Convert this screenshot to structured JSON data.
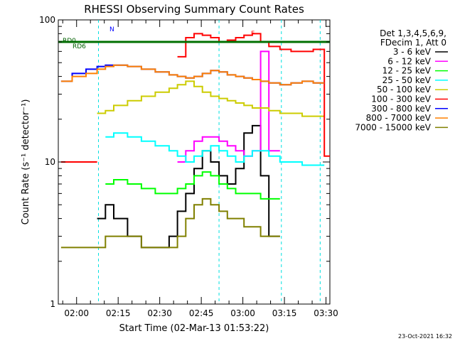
{
  "chart_data": {
    "type": "line",
    "title": "RHESSI Observing Summary Count Rates",
    "xlabel": "Start Time (02-Mar-13 01:53:22)",
    "ylabel": "Count Rate (s⁻¹ detector⁻¹)",
    "yscale": "log",
    "ylim": [
      1,
      100
    ],
    "y_tick_labels": [
      {
        "value": 1,
        "label": "1"
      },
      {
        "value": 10,
        "label": "10"
      },
      {
        "value": 100,
        "label": "100"
      }
    ],
    "x_tick_labels": [
      {
        "t": 6.6,
        "label": "02:00"
      },
      {
        "t": 21.6,
        "label": "02:15"
      },
      {
        "t": 36.6,
        "label": "02:30"
      },
      {
        "t": 51.6,
        "label": "02:45"
      },
      {
        "t": 66.6,
        "label": "03:00"
      },
      {
        "t": 81.6,
        "label": "03:15"
      },
      {
        "t": 96.6,
        "label": "03:30"
      }
    ],
    "xlim": [
      0,
      98
    ],
    "legend_header": [
      "Det 1,3,4,5,6,9,",
      "FDecim 1, Att 0"
    ],
    "legend_placement": "right",
    "footer_date": "23-Oct-2021 16:32",
    "annotations": {
      "rd0": "RD0",
      "rd6": "RD6",
      "n_marker": "N",
      "f_marker": "F"
    },
    "series": [
      {
        "name": "3 - 6 keV",
        "color": "#000000",
        "x": [
          0,
          5,
          10,
          14,
          17,
          20,
          25,
          30,
          35,
          40,
          43,
          46,
          49,
          52,
          55,
          58,
          61,
          64,
          67,
          70,
          73,
          76,
          80,
          84,
          88,
          92,
          96
        ],
        "y": [
          null,
          null,
          null,
          4,
          5,
          4,
          3,
          2.5,
          2.5,
          3,
          4.5,
          6,
          9,
          12,
          10,
          8,
          7,
          9,
          16,
          18,
          8,
          3,
          null,
          null,
          null,
          null,
          null
        ]
      },
      {
        "name": "6 - 12 keV",
        "color": "#ff00ff",
        "x": [
          1,
          5,
          10,
          14,
          17,
          20,
          25,
          30,
          35,
          40,
          43,
          46,
          49,
          52,
          55,
          58,
          61,
          64,
          67,
          70,
          73,
          76,
          80,
          84,
          88,
          92,
          96
        ],
        "y": [
          null,
          null,
          null,
          null,
          null,
          null,
          null,
          null,
          null,
          null,
          10,
          12,
          14,
          15,
          15,
          14,
          13,
          12,
          11,
          12,
          60,
          12,
          null,
          null,
          null,
          null,
          null
        ]
      },
      {
        "name": "12 - 25 keV",
        "color": "#00ff00",
        "x": [
          1,
          5,
          10,
          14,
          17,
          20,
          25,
          30,
          35,
          40,
          43,
          46,
          49,
          52,
          55,
          58,
          61,
          64,
          67,
          70,
          73,
          76,
          80,
          84,
          88,
          92,
          96
        ],
        "y": [
          null,
          null,
          null,
          null,
          7,
          7.5,
          7,
          6.5,
          6,
          6,
          6.5,
          7,
          8,
          8.5,
          8,
          7,
          6.5,
          6,
          6,
          6,
          5.5,
          5.5,
          null,
          null,
          null,
          null,
          null
        ]
      },
      {
        "name": "25 - 50 keV",
        "color": "#00ffff",
        "x": [
          1,
          5,
          10,
          14,
          17,
          20,
          25,
          30,
          35,
          40,
          43,
          46,
          49,
          52,
          55,
          58,
          61,
          64,
          67,
          70,
          73,
          76,
          80,
          84,
          88,
          92,
          96
        ],
        "y": [
          null,
          null,
          null,
          null,
          15,
          16,
          15,
          14,
          13,
          12,
          11,
          10,
          11,
          12,
          13,
          12,
          11,
          10,
          11,
          12,
          12,
          11,
          10,
          10,
          9.5,
          9.5,
          null
        ]
      },
      {
        "name": "50 - 100 keV",
        "color": "#cccc00",
        "x": [
          1,
          5,
          10,
          14,
          17,
          20,
          25,
          30,
          35,
          40,
          43,
          46,
          49,
          52,
          55,
          58,
          61,
          64,
          67,
          70,
          73,
          76,
          80,
          84,
          88,
          92,
          96
        ],
        "y": [
          null,
          null,
          null,
          22,
          23,
          25,
          27,
          29,
          31,
          33,
          35,
          37,
          34,
          31,
          29,
          28,
          27,
          26,
          25,
          24,
          24,
          23,
          22,
          22,
          21,
          21,
          null
        ]
      },
      {
        "name": "100 - 300 keV",
        "color": "#ff0000",
        "x": [
          1,
          5,
          10,
          14,
          17,
          20,
          25,
          30,
          35,
          40,
          43,
          46,
          49,
          52,
          55,
          58,
          61,
          64,
          67,
          70,
          73,
          76,
          80,
          84,
          88,
          92,
          96
        ],
        "y": [
          10,
          10,
          10,
          null,
          null,
          null,
          null,
          null,
          null,
          null,
          55,
          75,
          80,
          78,
          75,
          70,
          72,
          75,
          78,
          80,
          70,
          65,
          62,
          60,
          60,
          62,
          11
        ]
      },
      {
        "name": "300 - 800 keV",
        "color": "#0000ff",
        "x": [
          1,
          5,
          10,
          14,
          17,
          20,
          25,
          30,
          35,
          40,
          43,
          46,
          49,
          52,
          55,
          58,
          61,
          64,
          67,
          70,
          73,
          76,
          80,
          84,
          88,
          92,
          96
        ],
        "y": [
          37,
          42,
          45,
          47,
          48,
          48,
          47,
          45,
          43,
          41,
          40,
          39,
          40,
          42,
          44,
          43,
          41,
          40,
          39,
          38,
          37,
          36,
          35,
          36,
          37,
          36,
          null
        ]
      },
      {
        "name": "800 - 7000 keV",
        "color": "#ff8000",
        "x": [
          1,
          5,
          10,
          14,
          17,
          20,
          25,
          30,
          35,
          40,
          43,
          46,
          49,
          52,
          55,
          58,
          61,
          64,
          67,
          70,
          73,
          76,
          80,
          84,
          88,
          92,
          96
        ],
        "y": [
          37,
          40,
          42,
          45,
          47,
          48,
          47,
          45,
          43,
          41,
          40,
          39,
          40,
          42,
          44,
          43,
          41,
          40,
          39,
          38,
          37,
          36,
          35,
          36,
          37,
          36,
          null
        ]
      },
      {
        "name": "7000 - 15000 keV",
        "color": "#808000",
        "x": [
          1,
          5,
          10,
          14,
          17,
          20,
          25,
          30,
          35,
          40,
          43,
          46,
          49,
          52,
          55,
          58,
          61,
          64,
          67,
          70,
          73,
          76,
          80,
          84,
          88,
          92,
          96
        ],
        "y": [
          2.5,
          2.5,
          2.5,
          2.5,
          3,
          3,
          3,
          2.5,
          2.5,
          2.5,
          3,
          4,
          5,
          5.5,
          5,
          4.5,
          4,
          4,
          3.5,
          3.5,
          3,
          3,
          null,
          null,
          null,
          null,
          null
        ]
      }
    ]
  }
}
